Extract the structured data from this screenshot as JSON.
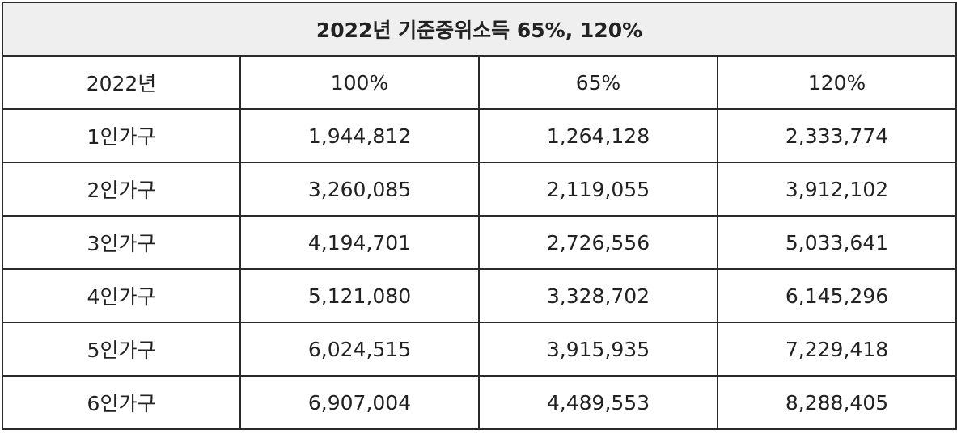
{
  "table": {
    "title": "2022년 기준중위소득 65%, 120%",
    "headers": [
      "2022년",
      "100%",
      "65%",
      "120%"
    ],
    "rows": [
      [
        "1인가구",
        "1,944,812",
        "1,264,128",
        "2,333,774"
      ],
      [
        "2인가구",
        "3,260,085",
        "2,119,055",
        "3,912,102"
      ],
      [
        "3인가구",
        "4,194,701",
        "2,726,556",
        "5,033,641"
      ],
      [
        "4인가구",
        "5,121,080",
        "3,328,702",
        "6,145,296"
      ],
      [
        "5인가구",
        "6,024,515",
        "3,915,935",
        "7,229,418"
      ],
      [
        "6인가구",
        "6,907,004",
        "4,489,553",
        "8,288,405"
      ]
    ]
  }
}
